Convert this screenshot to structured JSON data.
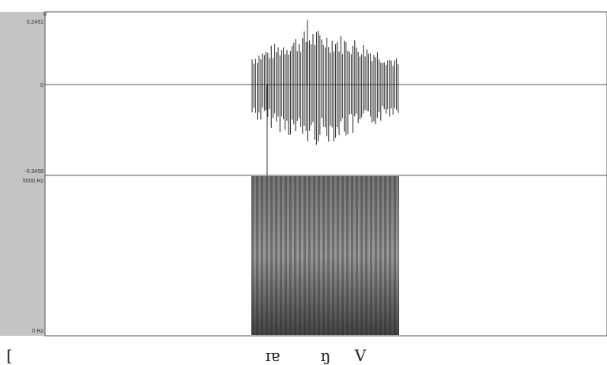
{
  "axis": {
    "top_marker": "0",
    "wave_max": "0.2491",
    "wave_zero": "0",
    "wave_min": "-0.3458",
    "freq_max": "5000 Hz",
    "freq_min": "0 Hz"
  },
  "transcription": {
    "bracket": "[",
    "segments": [
      "ɪɐ",
      "ŋ",
      "V"
    ]
  }
}
